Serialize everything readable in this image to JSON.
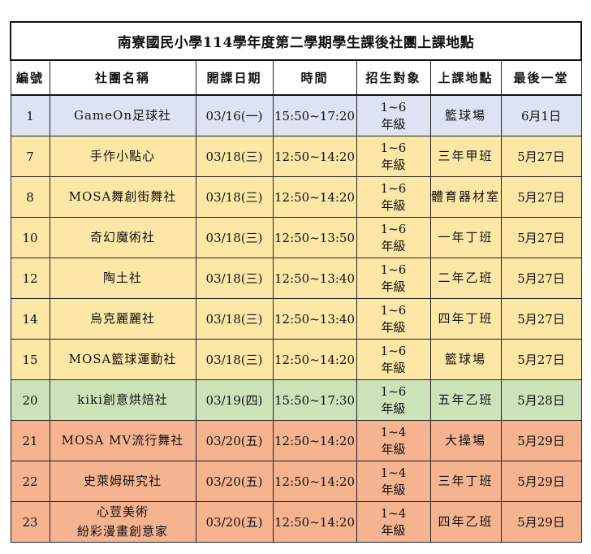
{
  "title": "南寮國民小學114學年度第二學期學生課後社團上課地點",
  "headers": [
    "編號",
    "社團名稱",
    "開課日期",
    "時間",
    "招生對象",
    "上課地點",
    "最後一堂"
  ],
  "rows": [
    {
      "no": "1",
      "name": "GameOn足球社",
      "date": "03/16(一)",
      "time": "15:50~17:20",
      "grade1": "1~6",
      "grade2": "年級",
      "loc": "籃球場",
      "last": "6月1日",
      "color": "#dde3f3"
    },
    {
      "no": "7",
      "name": "手作小點心",
      "date": "03/18(三)",
      "time": "12:50~14:20",
      "grade1": "1~6",
      "grade2": "年級",
      "loc": "三年甲班",
      "last": "5月27日",
      "color": "#fde7a6"
    },
    {
      "no": "8",
      "name": "MOSA舞創街舞社",
      "date": "03/18(三)",
      "time": "12:50~14:20",
      "grade1": "1~6",
      "grade2": "年級",
      "loc": "體育器材室",
      "last": "5月27日",
      "color": "#fde7a6"
    },
    {
      "no": "10",
      "name": "奇幻魔術社",
      "date": "03/18(三)",
      "time": "12:50~13:50",
      "grade1": "1~6",
      "grade2": "年級",
      "loc": "一年丁班",
      "last": "5月27日",
      "color": "#fde7a6"
    },
    {
      "no": "12",
      "name": "陶土社",
      "date": "03/18(三)",
      "time": "12:50~13:40",
      "grade1": "1~6",
      "grade2": "年級",
      "loc": "二年乙班",
      "last": "5月27日",
      "color": "#fde7a6"
    },
    {
      "no": "14",
      "name": "烏克麗麗社",
      "date": "03/18(三)",
      "time": "12:50~13:40",
      "grade1": "1~6",
      "grade2": "年級",
      "loc": "四年丁班",
      "last": "5月27日",
      "color": "#fde7a6"
    },
    {
      "no": "15",
      "name": "MOSA籃球運動社",
      "date": "03/18(三)",
      "time": "12:50~14:20",
      "grade1": "1~6",
      "grade2": "年級",
      "loc": "籃球場",
      "last": "5月27日",
      "color": "#fde7a6"
    },
    {
      "no": "20",
      "name": "kiki創意烘焙社",
      "date": "03/19(四)",
      "time": "15:50~17:30",
      "grade1": "1~6",
      "grade2": "年級",
      "loc": "五年乙班",
      "last": "5月28日",
      "color": "#cce3b9"
    },
    {
      "no": "21",
      "name": "MOSA MV流行舞社",
      "date": "03/20(五)",
      "time": "12:50~14:20",
      "grade1": "1~4",
      "grade2": "年級",
      "loc": "大操場",
      "last": "5月29日",
      "color": "#f6b390"
    },
    {
      "no": "22",
      "name": "史萊姆研究社",
      "date": "03/20(五)",
      "time": "12:50~14:20",
      "grade1": "1~4",
      "grade2": "年級",
      "loc": "三年丁班",
      "last": "5月29日",
      "color": "#f6b390"
    },
    {
      "no": "23",
      "name": "心荳美術\n紛彩漫畫創意家",
      "date": "03/20(五)",
      "time": "12:50~14:20",
      "grade1": "1~4",
      "grade2": "年級",
      "loc": "四年乙班",
      "last": "5月29日",
      "color": "#f6b390"
    }
  ]
}
